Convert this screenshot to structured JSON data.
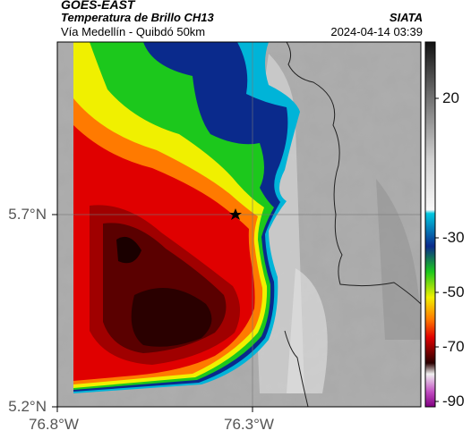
{
  "header": {
    "title": "GOES-EAST",
    "subtitle": "Temperatura de Brillo CH13",
    "location": "Vía Medellín - Quibdó 50km",
    "organization": "SIATA",
    "datetime": "2024-04-14 03:39"
  },
  "axes": {
    "lat_ticks": [
      "5.7°N",
      "5.2°N"
    ],
    "lon_ticks": [
      "76.8°W",
      "76.3°W"
    ],
    "gridlines": true
  },
  "colorbar": {
    "ticks": [
      "20",
      "-30",
      "-50",
      "-70",
      "-90"
    ],
    "scale": [
      {
        "t": 38,
        "color": "#111111"
      },
      {
        "t": 0,
        "color": "#d8d8d8"
      },
      {
        "t": -20,
        "color": "#f4f4f4"
      },
      {
        "t": -23,
        "color": "#00b4d8"
      },
      {
        "t": -32,
        "color": "#0a2a8c"
      },
      {
        "t": -40,
        "color": "#1cc81c"
      },
      {
        "t": -48,
        "color": "#f0f000"
      },
      {
        "t": -56,
        "color": "#ff7a00"
      },
      {
        "t": -63,
        "color": "#e00000"
      },
      {
        "t": -70,
        "color": "#3a0000"
      },
      {
        "t": -80,
        "color": "#e8e8e8"
      },
      {
        "t": -92,
        "color": "#8a008a"
      }
    ]
  },
  "marker": {
    "type": "star"
  },
  "colors": {
    "cloud_cold": "#3a0000",
    "cloud_red": "#e00000",
    "cloud_orange": "#ff7a00",
    "cloud_yellow": "#f0f000",
    "cloud_green": "#1cc81c",
    "cloud_blue": "#0a2a8c",
    "cloud_cyan": "#00b4d8",
    "clear_gray": "#a8a8a8"
  }
}
